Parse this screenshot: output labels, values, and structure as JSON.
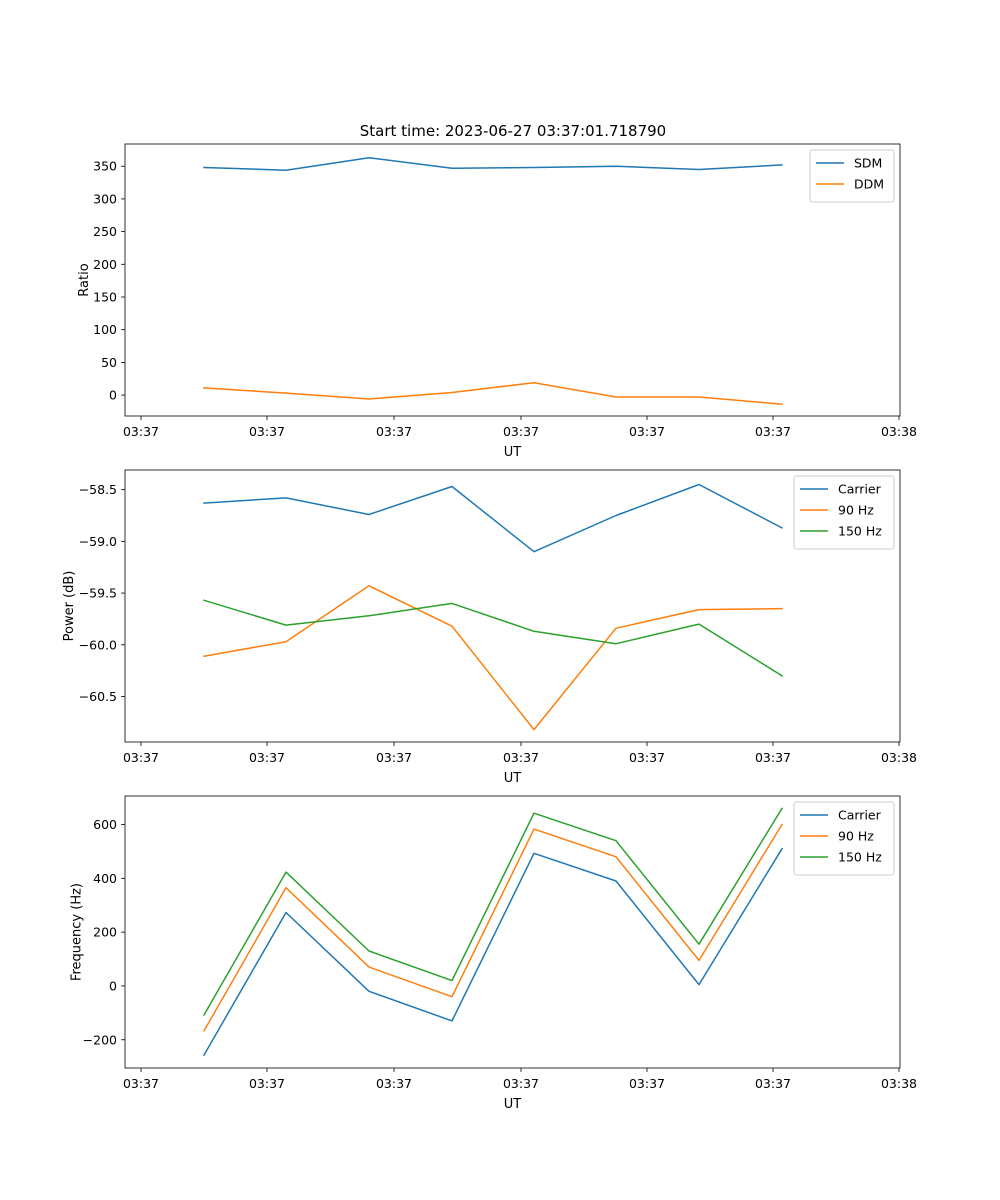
{
  "figure": {
    "title": "Start time: 2023-06-27 03:37:01.718790"
  },
  "chart_data": [
    {
      "type": "line",
      "xlabel": "UT",
      "ylabel": "Ratio",
      "x_ticks": [
        "03:37",
        "03:37",
        "03:37",
        "03:37",
        "03:37",
        "03:37",
        "03:38"
      ],
      "x_points": 8,
      "y_ticks": [
        0,
        50,
        100,
        150,
        200,
        250,
        300,
        350
      ],
      "ylim": [
        -32,
        384
      ],
      "grid": false,
      "legend": "top-right",
      "series": [
        {
          "name": "SDM",
          "color": "#1f77b4",
          "values": [
            348,
            344,
            363,
            347,
            348,
            350,
            345,
            352
          ]
        },
        {
          "name": "DDM",
          "color": "#ff7f0e",
          "values": [
            11,
            3,
            -6,
            4,
            19,
            -3,
            -3,
            -14
          ]
        }
      ]
    },
    {
      "type": "line",
      "xlabel": "UT",
      "ylabel": "Power (dB)",
      "x_ticks": [
        "03:37",
        "03:37",
        "03:37",
        "03:37",
        "03:37",
        "03:37",
        "03:38"
      ],
      "x_points": 8,
      "y_ticks": [
        -60.5,
        -60.0,
        -59.5,
        -59.0,
        -58.5
      ],
      "y_tick_labels": [
        "−60.5",
        "−60.0",
        "−59.5",
        "−59.0",
        "−58.5"
      ],
      "ylim": [
        -60.94,
        -58.31
      ],
      "grid": false,
      "legend": "top-right",
      "series": [
        {
          "name": "Carrier",
          "color": "#1f77b4",
          "values": [
            -58.63,
            -58.58,
            -58.74,
            -58.47,
            -59.1,
            -58.75,
            -58.45,
            -58.87
          ]
        },
        {
          "name": "90 Hz",
          "color": "#ff7f0e",
          "values": [
            -60.11,
            -59.97,
            -59.43,
            -59.82,
            -60.82,
            -59.84,
            -59.66,
            -59.65
          ]
        },
        {
          "name": "150 Hz",
          "color": "#2ca02c",
          "values": [
            -59.57,
            -59.81,
            -59.72,
            -59.6,
            -59.87,
            -59.99,
            -59.8,
            -60.3
          ]
        }
      ]
    },
    {
      "type": "line",
      "xlabel": "UT",
      "ylabel": "Frequency (Hz)",
      "x_ticks": [
        "03:37",
        "03:37",
        "03:37",
        "03:37",
        "03:37",
        "03:37",
        "03:38"
      ],
      "x_points": 8,
      "y_ticks": [
        -200,
        0,
        200,
        400,
        600
      ],
      "y_tick_labels": [
        "−200",
        "0",
        "200",
        "400",
        "600"
      ],
      "ylim": [
        -305,
        706
      ],
      "grid": false,
      "legend": "top-right",
      "series": [
        {
          "name": "Carrier",
          "color": "#1f77b4",
          "values": [
            -257,
            273,
            -20,
            -130,
            493,
            390,
            5,
            510
          ]
        },
        {
          "name": "90 Hz",
          "color": "#ff7f0e",
          "values": [
            -167,
            365,
            70,
            -40,
            583,
            480,
            95,
            600
          ]
        },
        {
          "name": "150 Hz",
          "color": "#2ca02c",
          "values": [
            -108,
            423,
            130,
            20,
            642,
            540,
            155,
            660
          ]
        }
      ]
    }
  ]
}
